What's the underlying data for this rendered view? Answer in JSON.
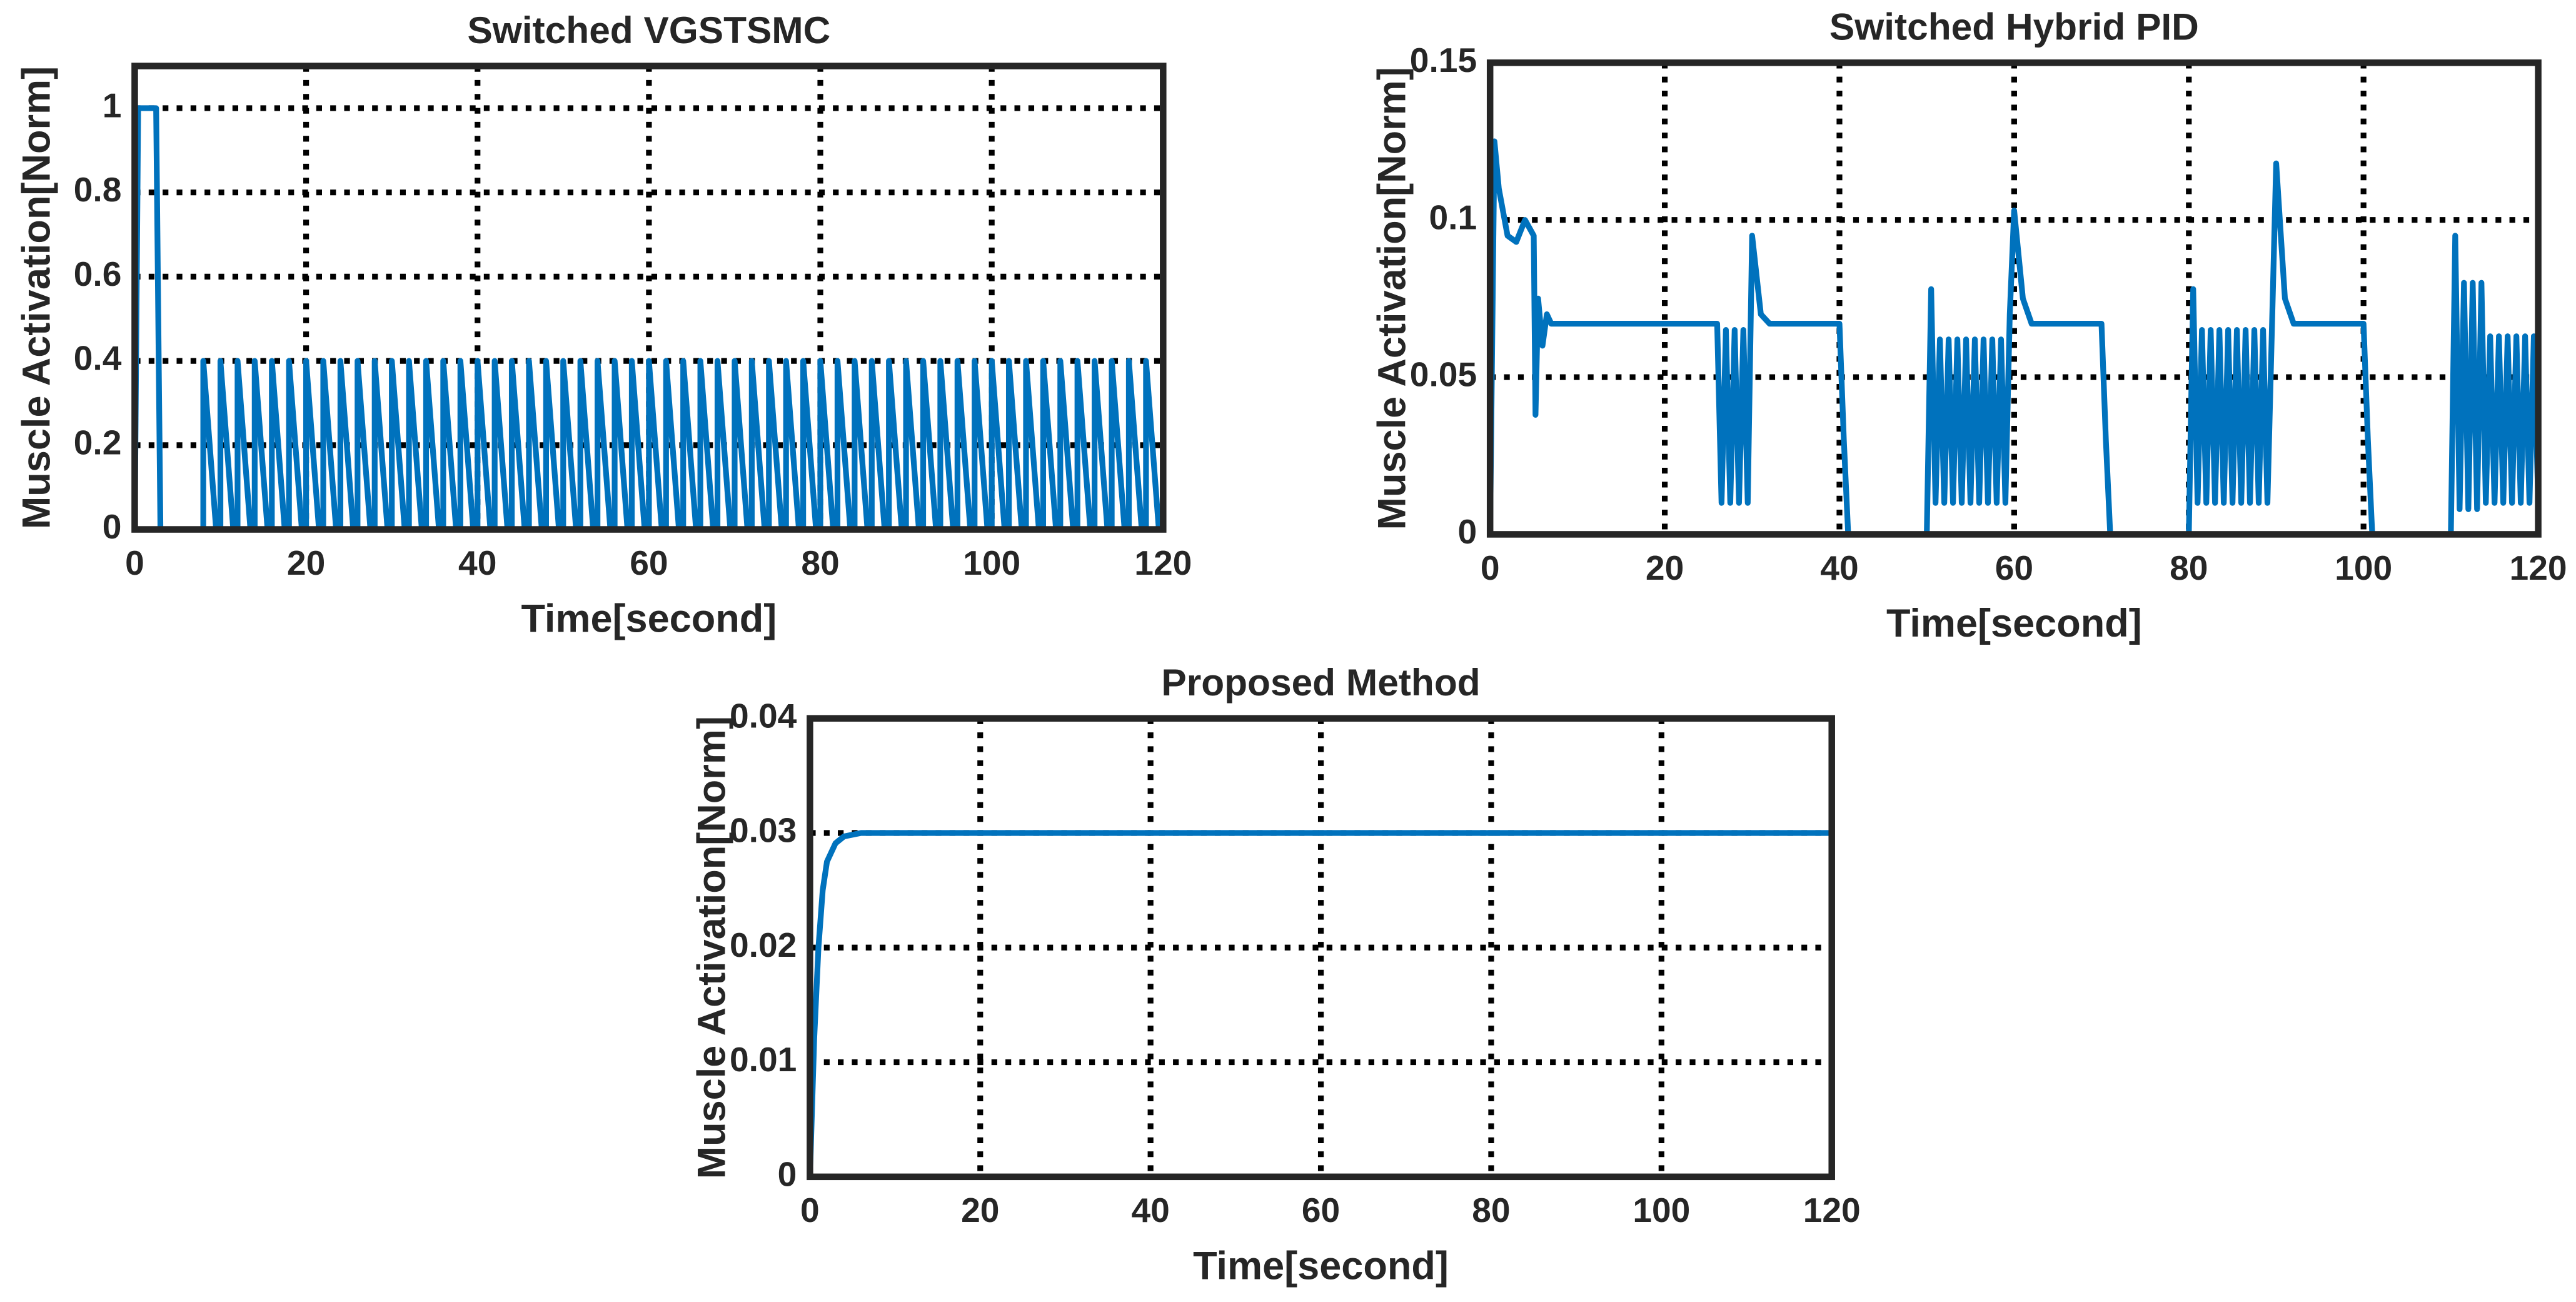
{
  "chart_data": [
    {
      "type": "line",
      "title": "Switched VGSTSMC",
      "xlabel": "Time[second]",
      "ylabel": "Muscle Activation[Norm]",
      "color": "#0072bd",
      "grid": true,
      "xlim": [
        0,
        120
      ],
      "xticks": [
        0,
        20,
        40,
        60,
        80,
        100,
        120
      ],
      "ylim": [
        0,
        1.1
      ],
      "yticks": [
        0,
        0.2,
        0.4,
        0.6,
        0.8,
        1
      ],
      "x": [
        0,
        0.4,
        2.5,
        3,
        8,
        8,
        9.5,
        10,
        10,
        11.5,
        12,
        12,
        13.5,
        14,
        14,
        15.5,
        16,
        16,
        17.5,
        18,
        18,
        19.5,
        20,
        20,
        21.5,
        22,
        22,
        23.5,
        24,
        24,
        25.5,
        26,
        26,
        27.5,
        28,
        28,
        29.5,
        30,
        30,
        31.5,
        32,
        32,
        33.5,
        34,
        34,
        35.5,
        36,
        36,
        37.5,
        38,
        38,
        39.5,
        40,
        40,
        41.5,
        42,
        42,
        43.5,
        44,
        44,
        45.5,
        46,
        46,
        47.5,
        48,
        48,
        49.5,
        50,
        50,
        51.5,
        52,
        52,
        53.5,
        54,
        54,
        55.5,
        56,
        56,
        57.5,
        58,
        58,
        59.5,
        60,
        60,
        61.5,
        62,
        62,
        63.5,
        64,
        64,
        65.5,
        66,
        66,
        67.5,
        68,
        68,
        69.5,
        70,
        70,
        71.5,
        72,
        72,
        73.5,
        74,
        74,
        75.5,
        76,
        76,
        77.5,
        78,
        78,
        79.5,
        80,
        80,
        81.5,
        82,
        82,
        83.5,
        84,
        84,
        85.5,
        86,
        86,
        87.5,
        88,
        88,
        89.5,
        90,
        90,
        91.5,
        92,
        92,
        93.5,
        94,
        94,
        95.5,
        96,
        96,
        97.5,
        98,
        98,
        99.5,
        100,
        100,
        101.5,
        102,
        102,
        103.5,
        104,
        104,
        105.5,
        106,
        106,
        107.5,
        108,
        108,
        109.5,
        110,
        110,
        111.5,
        112,
        112,
        113.5,
        114,
        114,
        115.5,
        116,
        116,
        117.5,
        118,
        118,
        119.5,
        120
      ],
      "values": [
        0,
        1,
        1,
        0,
        0,
        0.4,
        0,
        0,
        0.4,
        0,
        0,
        0.4,
        0,
        0,
        0.4,
        0,
        0,
        0.4,
        0,
        0,
        0.4,
        0,
        0,
        0.4,
        0,
        0,
        0.4,
        0,
        0,
        0.4,
        0,
        0,
        0.4,
        0,
        0,
        0.4,
        0,
        0,
        0.4,
        0,
        0,
        0.4,
        0,
        0,
        0.4,
        0,
        0,
        0.4,
        0,
        0,
        0.4,
        0,
        0,
        0.4,
        0,
        0,
        0.4,
        0,
        0,
        0.4,
        0,
        0,
        0.4,
        0,
        0,
        0.4,
        0,
        0,
        0.4,
        0,
        0,
        0.4,
        0,
        0,
        0.4,
        0,
        0,
        0.4,
        0,
        0,
        0.4,
        0,
        0,
        0.4,
        0,
        0,
        0.4,
        0,
        0,
        0.4,
        0,
        0,
        0.4,
        0,
        0,
        0.4,
        0,
        0,
        0.4,
        0,
        0,
        0.4,
        0,
        0,
        0.4,
        0,
        0,
        0.4,
        0,
        0,
        0.4,
        0,
        0,
        0.4,
        0,
        0,
        0.4,
        0,
        0,
        0.4,
        0,
        0,
        0.4,
        0,
        0,
        0.4,
        0,
        0,
        0.4,
        0,
        0,
        0.4,
        0,
        0,
        0.4,
        0,
        0,
        0.4,
        0,
        0,
        0.4,
        0,
        0,
        0.4,
        0,
        0,
        0.4,
        0,
        0,
        0.4,
        0,
        0,
        0.4,
        0,
        0,
        0.4,
        0,
        0,
        0.4,
        0,
        0,
        0.4,
        0,
        0,
        0.4,
        0,
        0,
        0.4,
        0,
        0,
        0.4,
        0,
        0
      ]
    },
    {
      "type": "line",
      "title": "Switched Hybrid PID",
      "xlabel": "Time[second]",
      "ylabel": "Muscle Activation[Norm]",
      "color": "#0072bd",
      "grid": true,
      "xlim": [
        0,
        120
      ],
      "xticks": [
        0,
        20,
        40,
        60,
        80,
        100,
        120
      ],
      "ylim": [
        0,
        0.15
      ],
      "yticks": [
        0,
        0.05,
        0.1,
        0.15
      ],
      "x": [
        0,
        0.5,
        1,
        2,
        3,
        4,
        5,
        5.2,
        5.5,
        6,
        6.5,
        7,
        26,
        26.5,
        27,
        27.5,
        28,
        28.5,
        29,
        29.5,
        30,
        31,
        32,
        40,
        40.5,
        41,
        50,
        50.5,
        51,
        51.5,
        52,
        52.5,
        53,
        53.5,
        54,
        54.5,
        55,
        55.5,
        56,
        56.5,
        57,
        57.5,
        58,
        58.5,
        59,
        59.5,
        60,
        61,
        62,
        70,
        70.5,
        71,
        80,
        80.5,
        81,
        81.5,
        82,
        82.5,
        83,
        83.5,
        84,
        84.5,
        85,
        85.5,
        86,
        86.5,
        87,
        87.5,
        88,
        88.5,
        89,
        90,
        91,
        92,
        100,
        100.5,
        101,
        110,
        110.5,
        111,
        111.5,
        112,
        112.5,
        113,
        113.5,
        114,
        114.5,
        115,
        115.5,
        116,
        116.5,
        117,
        117.5,
        118,
        118.5,
        119,
        119.5,
        120
      ],
      "values": [
        0,
        0.125,
        0.11,
        0.095,
        0.093,
        0.1,
        0.095,
        0.038,
        0.075,
        0.06,
        0.07,
        0.067,
        0.067,
        0.01,
        0.065,
        0.01,
        0.065,
        0.01,
        0.065,
        0.01,
        0.095,
        0.07,
        0.067,
        0.067,
        0.03,
        0,
        0,
        0.078,
        0.01,
        0.062,
        0.01,
        0.062,
        0.01,
        0.062,
        0.01,
        0.062,
        0.01,
        0.062,
        0.01,
        0.062,
        0.01,
        0.062,
        0.01,
        0.062,
        0.01,
        0.07,
        0.103,
        0.075,
        0.067,
        0.067,
        0.03,
        0,
        0,
        0.078,
        0.01,
        0.065,
        0.01,
        0.065,
        0.01,
        0.065,
        0.01,
        0.065,
        0.01,
        0.065,
        0.01,
        0.065,
        0.01,
        0.065,
        0.01,
        0.065,
        0.01,
        0.118,
        0.075,
        0.067,
        0.067,
        0.03,
        0,
        0,
        0.095,
        0.008,
        0.08,
        0.008,
        0.08,
        0.008,
        0.08,
        0.01,
        0.063,
        0.01,
        0.063,
        0.01,
        0.063,
        0.01,
        0.063,
        0.01,
        0.063,
        0.01,
        0.063,
        0.01
      ]
    },
    {
      "type": "line",
      "title": "Proposed Method",
      "xlabel": "Time[second]",
      "ylabel": "Muscle Activation[Norm]",
      "color": "#0072bd",
      "grid": true,
      "xlim": [
        0,
        120
      ],
      "xticks": [
        0,
        20,
        40,
        60,
        80,
        100,
        120
      ],
      "ylim": [
        0,
        0.04
      ],
      "yticks": [
        0,
        0.01,
        0.02,
        0.03,
        0.04
      ],
      "x": [
        0,
        0.5,
        1,
        1.5,
        2,
        3,
        4,
        6,
        120
      ],
      "values": [
        0,
        0.012,
        0.02,
        0.025,
        0.0275,
        0.0291,
        0.0297,
        0.03,
        0.03
      ]
    }
  ]
}
